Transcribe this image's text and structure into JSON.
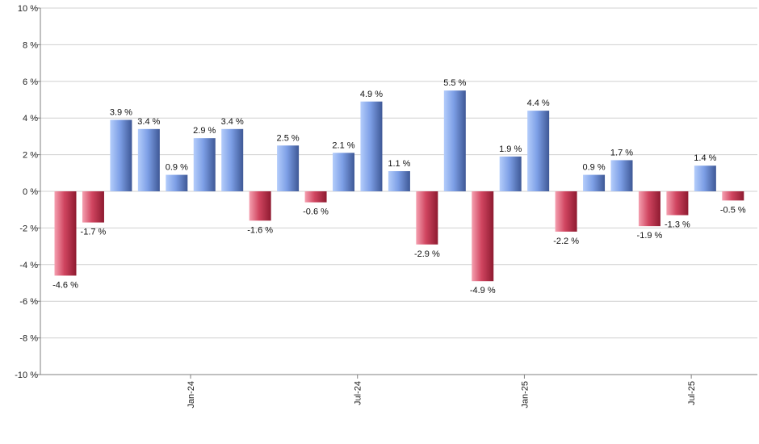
{
  "chart_data": {
    "type": "bar",
    "title": "",
    "xlabel": "",
    "ylabel": "",
    "ylim": [
      -10,
      10
    ],
    "ytick_step": 2,
    "y_tick_suffix": " %",
    "grid": true,
    "values": [
      -4.6,
      -1.7,
      3.9,
      3.4,
      0.9,
      2.9,
      3.4,
      -1.6,
      2.5,
      -0.6,
      2.1,
      4.9,
      1.1,
      -2.9,
      5.5,
      -4.9,
      1.9,
      4.4,
      -2.2,
      0.9,
      1.7,
      -1.9,
      -1.3,
      1.4,
      -0.5
    ],
    "data_labels": [
      "-4.6 %",
      "-1.7 %",
      "3.9 %",
      "3.4 %",
      "0.9 %",
      "2.9 %",
      "3.4 %",
      "-1.6 %",
      "2.5 %",
      "-0.6 %",
      "2.1 %",
      "4.9 %",
      "1.1 %",
      "-2.9 %",
      "5.5 %",
      "-4.9 %",
      "1.9 %",
      "4.4 %",
      "-2.2 %",
      "0.9 %",
      "1.7 %",
      "-1.9 %",
      "-1.3 %",
      "1.4 %",
      "-0.5 %"
    ],
    "x_ticks": [
      {
        "label": "Jan-24",
        "index": 4
      },
      {
        "label": "Jul-24",
        "index": 10
      },
      {
        "label": "Jan-25",
        "index": 16
      },
      {
        "label": "Jul-25",
        "index": 22
      }
    ],
    "colors": {
      "positive_light": "#b4cdfb",
      "positive_mid": "#7d9fe6",
      "positive_dark": "#3e5896",
      "negative_light": "#f5a0b0",
      "negative_mid": "#d04560",
      "negative_dark": "#8e1a30",
      "grid": "#d0d0d0",
      "axis": "#808080"
    }
  }
}
